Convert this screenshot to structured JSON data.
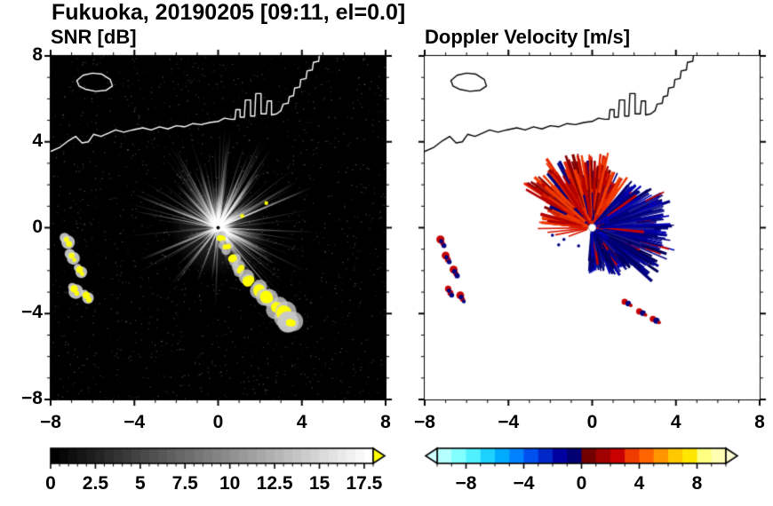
{
  "header": {
    "title": "Fukuoka, 20190205 [09:11, el=0.0]"
  },
  "coastline": {
    "mainline": [
      [
        -8,
        3.55
      ],
      [
        -7.55,
        3.75
      ],
      [
        -7.15,
        4.05
      ],
      [
        -6.8,
        4.25
      ],
      [
        -6.5,
        3.95
      ],
      [
        -6.2,
        4.0
      ],
      [
        -5.95,
        4.35
      ],
      [
        -5.6,
        4.25
      ],
      [
        -5.25,
        4.4
      ],
      [
        -4.9,
        4.55
      ],
      [
        -4.5,
        4.45
      ],
      [
        -4.1,
        4.55
      ],
      [
        -3.6,
        4.65
      ],
      [
        -3.2,
        4.55
      ],
      [
        -2.8,
        4.7
      ],
      [
        -2.4,
        4.6
      ],
      [
        -2.0,
        4.75
      ],
      [
        -1.6,
        4.7
      ],
      [
        -1.2,
        4.85
      ],
      [
        -0.8,
        4.8
      ],
      [
        -0.4,
        4.9
      ],
      [
        0,
        4.95
      ],
      [
        0.3,
        5.1
      ],
      [
        0.6,
        5.05
      ],
      [
        0.8,
        5.05
      ],
      [
        0.85,
        5.5
      ],
      [
        1.05,
        5.5
      ],
      [
        1.05,
        5.15
      ],
      [
        1.25,
        5.15
      ],
      [
        1.3,
        5.95
      ],
      [
        1.55,
        5.95
      ],
      [
        1.55,
        5.2
      ],
      [
        1.75,
        5.2
      ],
      [
        1.8,
        6.25
      ],
      [
        2.05,
        6.25
      ],
      [
        2.05,
        5.3
      ],
      [
        2.3,
        5.3
      ],
      [
        2.35,
        5.9
      ],
      [
        2.55,
        5.9
      ],
      [
        2.55,
        5.25
      ],
      [
        2.8,
        5.3
      ],
      [
        3.0,
        5.45
      ],
      [
        3.1,
        5.75
      ],
      [
        3.35,
        5.8
      ],
      [
        3.4,
        6.1
      ],
      [
        3.6,
        6.15
      ],
      [
        3.65,
        6.5
      ],
      [
        3.9,
        6.55
      ],
      [
        3.95,
        6.9
      ],
      [
        4.2,
        6.95
      ],
      [
        4.25,
        7.3
      ],
      [
        4.5,
        7.35
      ],
      [
        4.55,
        7.7
      ],
      [
        4.8,
        7.75
      ],
      [
        4.85,
        8.1
      ]
    ],
    "island": [
      [
        -6.75,
        6.85
      ],
      [
        -6.45,
        7.1
      ],
      [
        -6.0,
        7.2
      ],
      [
        -5.55,
        7.15
      ],
      [
        -5.15,
        6.9
      ],
      [
        -5.05,
        6.6
      ],
      [
        -5.35,
        6.4
      ],
      [
        -5.85,
        6.35
      ],
      [
        -6.35,
        6.45
      ],
      [
        -6.65,
        6.6
      ]
    ]
  },
  "chart_data": [
    {
      "type": "heatmap",
      "title": "SNR [dB]",
      "xlim": [
        -8,
        8
      ],
      "ylim": [
        -8,
        8
      ],
      "xticks": [
        -8,
        -4,
        0,
        4,
        8
      ],
      "yticks": [
        8,
        4,
        0,
        -4,
        -8
      ],
      "minor_step": 1,
      "background": "#000000",
      "coast_color": "#ffffff",
      "show_y_labels": true,
      "radar_center": [
        0,
        0
      ],
      "colorbar": {
        "range": [
          0,
          18
        ],
        "cell_step": 0.5,
        "labels": [
          0,
          2.5,
          5,
          7.5,
          10,
          12.5,
          15,
          17.5
        ],
        "colormap": "grayscale",
        "right_arrow": "#ffff00"
      },
      "features": {
        "speckle_count": 1700,
        "ray_count": 380,
        "long_rays": [
          {
            "angle": -50,
            "len": 5.2
          },
          {
            "angle": -33,
            "len": 3.1
          }
        ],
        "dark_ray": {
          "angle": -65,
          "len": 1.7
        },
        "echo_arc": [
          [
            0.12,
            -0.45
          ],
          [
            0.4,
            -0.95
          ],
          [
            0.72,
            -1.45
          ],
          [
            1.05,
            -1.95
          ],
          [
            1.45,
            -2.45
          ],
          [
            1.9,
            -2.9
          ],
          [
            2.35,
            -3.3
          ],
          [
            2.8,
            -3.7
          ],
          [
            3.2,
            -4.05
          ],
          [
            3.45,
            -4.35
          ]
        ],
        "echo_color": "#ffff00",
        "halo_color": "#c8c8c8",
        "west_patches": [
          [
            -7.25,
            -0.55
          ],
          [
            -7.0,
            -1.3
          ],
          [
            -6.62,
            -1.95
          ],
          [
            -6.88,
            -2.85
          ],
          [
            -6.3,
            -3.15
          ]
        ],
        "specks": [
          [
            2.3,
            1.15
          ],
          [
            1.15,
            0.55
          ]
        ]
      }
    },
    {
      "type": "heatmap",
      "title": "Doppler Velocity [m/s]",
      "xlim": [
        -8,
        8
      ],
      "ylim": [
        -8,
        8
      ],
      "xticks": [
        -8,
        -4,
        0,
        4,
        8
      ],
      "yticks": [
        8,
        4,
        0,
        -4,
        -8
      ],
      "minor_step": 1,
      "background": "#ffffff",
      "coast_color": "#000000",
      "show_y_labels": false,
      "radar_center": [
        0,
        0
      ],
      "colorbar": {
        "range": [
          -10,
          10
        ],
        "cell_step": 1,
        "labels": [
          -8,
          -4,
          0,
          4,
          8
        ],
        "palette": [
          "#b4ffff",
          "#82ffff",
          "#50f0ff",
          "#1ed2ff",
          "#00aaff",
          "#0082ff",
          "#0050f0",
          "#0028c8",
          "#0000a0",
          "#000073",
          "#730000",
          "#a00000",
          "#c80000",
          "#f03c00",
          "#ff6400",
          "#ff9600",
          "#ffc800",
          "#ffe600",
          "#ffff82",
          "#ffffb4"
        ],
        "left_arrow": "#d2ffff",
        "right_arrow": "#ffffd2"
      },
      "features": {
        "red_fan": {
          "count": 680,
          "ang": [
            55,
            175
          ],
          "colors": [
            "#d81800",
            "#b40000",
            "#f03c00",
            "#820000",
            "#e62900"
          ],
          "speck_color": "#000080"
        },
        "blue_fan": {
          "count": 840,
          "ang": [
            -95,
            50
          ],
          "colors": [
            "#000078",
            "#000096",
            "#0000b4",
            "#1e1e96",
            "#00005a"
          ],
          "speck_color": "#c80000"
        },
        "west_rays": [
          {
            "angle": 181,
            "len": 2.6
          },
          {
            "angle": 186,
            "len": 2.15
          },
          {
            "angle": 191,
            "len": 1.8
          },
          {
            "angle": 200,
            "len": 1.2
          }
        ],
        "west_patches": [
          [
            -7.25,
            -0.55
          ],
          [
            -7.0,
            -1.3
          ],
          [
            -6.62,
            -1.95
          ],
          [
            -6.88,
            -2.85
          ],
          [
            -6.3,
            -3.15
          ]
        ],
        "south_patches": [
          [
            1.55,
            -3.45
          ],
          [
            2.25,
            -3.9
          ],
          [
            2.9,
            -4.25
          ]
        ],
        "blue_specks": [
          [
            -1.9,
            -0.35
          ],
          [
            -1.35,
            -0.55
          ],
          [
            -0.65,
            -0.85
          ],
          [
            -1.6,
            -0.8
          ]
        ]
      }
    }
  ]
}
